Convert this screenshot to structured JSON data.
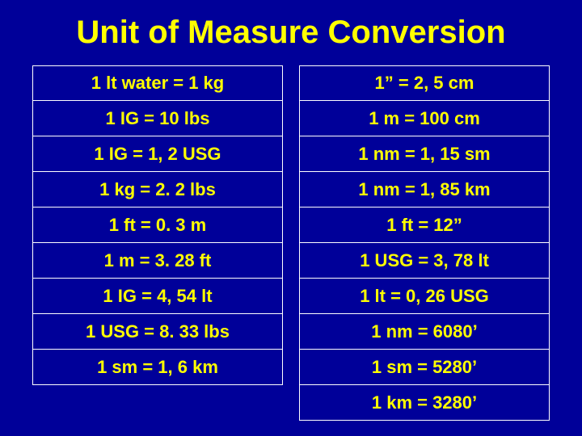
{
  "title": "Unit of Measure Conversion",
  "background_color": "#000099",
  "text_color": "#ffff00",
  "border_color": "#ffffff",
  "title_fontsize": 40,
  "cell_fontsize": 22,
  "left_column": [
    "1 lt water = 1 kg",
    "1 IG = 10 lbs",
    "1 IG = 1, 2 USG",
    "1 kg = 2. 2 lbs",
    "1 ft = 0. 3 m",
    "1 m = 3. 28 ft",
    "1 IG = 4, 54 lt",
    "1 USG = 8. 33 lbs",
    "1 sm = 1, 6 km"
  ],
  "right_column": [
    "1” = 2, 5 cm",
    "1 m = 100 cm",
    "1 nm = 1, 15 sm",
    "1 nm = 1, 85 km",
    "1 ft = 12”",
    "1 USG = 3, 78 lt",
    "1 lt = 0, 26 USG",
    "1 nm = 6080’",
    "1 sm = 5280’",
    "1 km = 3280’"
  ]
}
